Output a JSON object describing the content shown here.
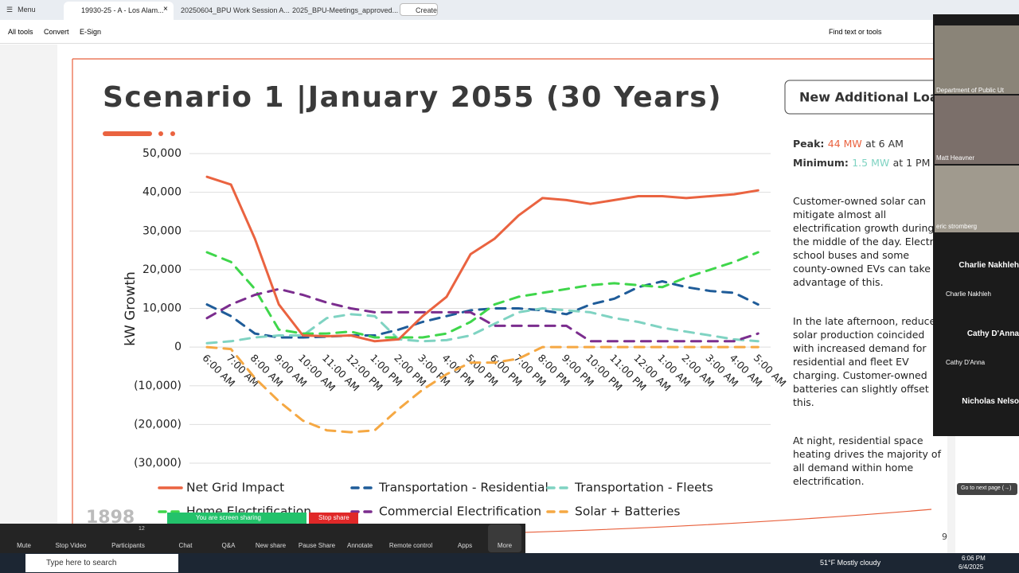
{
  "browser": {
    "menu": "Menu",
    "tabs": [
      "19930-25 - A - Los Alam...",
      "20250604_BPU Work Session A...",
      "2025_BPU-Meetings_approved..."
    ],
    "create": "Create"
  },
  "toolbar": {
    "items": [
      "All tools",
      "Convert",
      "E-Sign"
    ],
    "find": "Find text or tools"
  },
  "slide": {
    "title": "Scenario 1 |January 2055 (30 Years)",
    "badge": "New Additional Load",
    "peak_label": "Peak:",
    "peak_value": "44 MW",
    "peak_time": "at 6 AM",
    "min_label": "Minimum:",
    "min_value": "1.5 MW",
    "min_time": "at 1 PM",
    "paragraphs": [
      "Customer-owned solar can mitigate almost all electrification growth during the middle of the day. Electric school buses and some county-owned EVs can take advantage of this.",
      "In the late afternoon, reduced solar production coincided with increased demand for residential and fleet EV charging. Customer-owned batteries can slightly offset this.",
      "At night, residential space heating drives the majority of all demand within home electrification."
    ],
    "logo": "1898",
    "page_number": "9",
    "chart": {
      "type": "line",
      "y_label": "kW Growth",
      "categories": [
        "6:00 AM",
        "7:00 AM",
        "8:00 AM",
        "9:00 AM",
        "10:00 AM",
        "11:00 AM",
        "12:00 PM",
        "1:00 PM",
        "2:00 PM",
        "3:00 PM",
        "4:00 PM",
        "5:00 PM",
        "6:00 PM",
        "7:00 PM",
        "8:00 PM",
        "9:00 PM",
        "10:00 PM",
        "11:00 PM",
        "12:00 AM",
        "1:00 AM",
        "2:00 AM",
        "3:00 AM",
        "4:00 AM",
        "5:00 AM"
      ],
      "ylim": [
        -30000,
        50000
      ],
      "yticks": [
        {
          "value": -30000,
          "label": "(30,000)"
        },
        {
          "value": -20000,
          "label": "(20,000)"
        },
        {
          "value": -10000,
          "label": "(10,000)"
        },
        0,
        {
          "value": 10000,
          "label": "10,000"
        },
        {
          "value": 20000,
          "label": "20,000"
        },
        {
          "value": 30000,
          "label": "30,000"
        },
        {
          "value": 40000,
          "label": "40,000"
        },
        {
          "value": 50000,
          "label": "50,000"
        }
      ],
      "grid": true,
      "series": [
        {
          "name": "Net Grid Impact",
          "color": "#ea6340",
          "style": "solid",
          "values": [
            44000,
            42000,
            28000,
            11000,
            3000,
            2800,
            3000,
            1500,
            2000,
            8000,
            13000,
            24000,
            28000,
            34000,
            38500,
            38000,
            37000,
            38000,
            39000,
            39000,
            38500,
            39000,
            39500,
            40500
          ]
        },
        {
          "name": "Transportation - Residential",
          "color": "#1f5c99",
          "style": "dashed",
          "values": [
            11000,
            8000,
            3500,
            2500,
            2500,
            2700,
            3000,
            3000,
            4500,
            6500,
            8000,
            9500,
            10000,
            10000,
            9500,
            8500,
            11000,
            12500,
            15500,
            17000,
            15500,
            14500,
            14000,
            11000
          ]
        },
        {
          "name": "Transportation - Fleets",
          "color": "#7fd3c2",
          "style": "dashed",
          "values": [
            1000,
            1500,
            2500,
            3000,
            3000,
            7500,
            8500,
            8000,
            2000,
            1500,
            1800,
            3000,
            6000,
            9000,
            10000,
            9500,
            9000,
            7500,
            6500,
            5000,
            4000,
            3000,
            2000,
            1500
          ]
        },
        {
          "name": "Home Electrification",
          "color": "#3fd64b",
          "style": "dashed",
          "values": [
            24500,
            22000,
            15000,
            4500,
            3500,
            3500,
            4000,
            2500,
            2500,
            2500,
            3500,
            6500,
            11000,
            13000,
            14000,
            15000,
            16000,
            16500,
            16000,
            15500,
            18000,
            20000,
            22000,
            24500
          ]
        },
        {
          "name": "Commercial Electrification",
          "color": "#7b2d8e",
          "style": "dashed",
          "values": [
            7500,
            11000,
            13500,
            15000,
            13500,
            11500,
            10000,
            9000,
            9000,
            9000,
            9000,
            9000,
            5500,
            5500,
            5500,
            5500,
            1500,
            1500,
            1500,
            1500,
            1500,
            1500,
            1500,
            3500
          ]
        },
        {
          "name": "Solar + Batteries",
          "color": "#f5a843",
          "style": "dashed",
          "values": [
            0,
            -500,
            -8000,
            -14000,
            -19000,
            -21500,
            -22000,
            -21500,
            -16000,
            -11000,
            -7000,
            -4000,
            -4000,
            -3000,
            0,
            0,
            0,
            0,
            0,
            0,
            0,
            0,
            0,
            0
          ]
        }
      ]
    }
  },
  "video_panel": {
    "participants": [
      "Department of Public Ut",
      "Matt Heavner",
      "eric stromberg",
      "Charlie Nakhleh",
      "Charlie Nakhleh",
      "Cathy D'Anna",
      "Cathy D'Anna",
      "Nicholas Nelso"
    ]
  },
  "tooltip": "Go to next page (→)",
  "zoom": {
    "sharing": "You are screen sharing",
    "stop": "Stop share",
    "participant_count": "12",
    "buttons": [
      "Mute",
      "Stop Video",
      "Participants",
      "Chat",
      "Q&A",
      "New share",
      "Pause Share",
      "Annotate",
      "Remote control",
      "Apps",
      "More"
    ]
  },
  "taskbar": {
    "search": "Type here to search",
    "weather": "51°F  Mostly cloudy",
    "time": "6:06 PM",
    "date": "6/4/2025"
  }
}
